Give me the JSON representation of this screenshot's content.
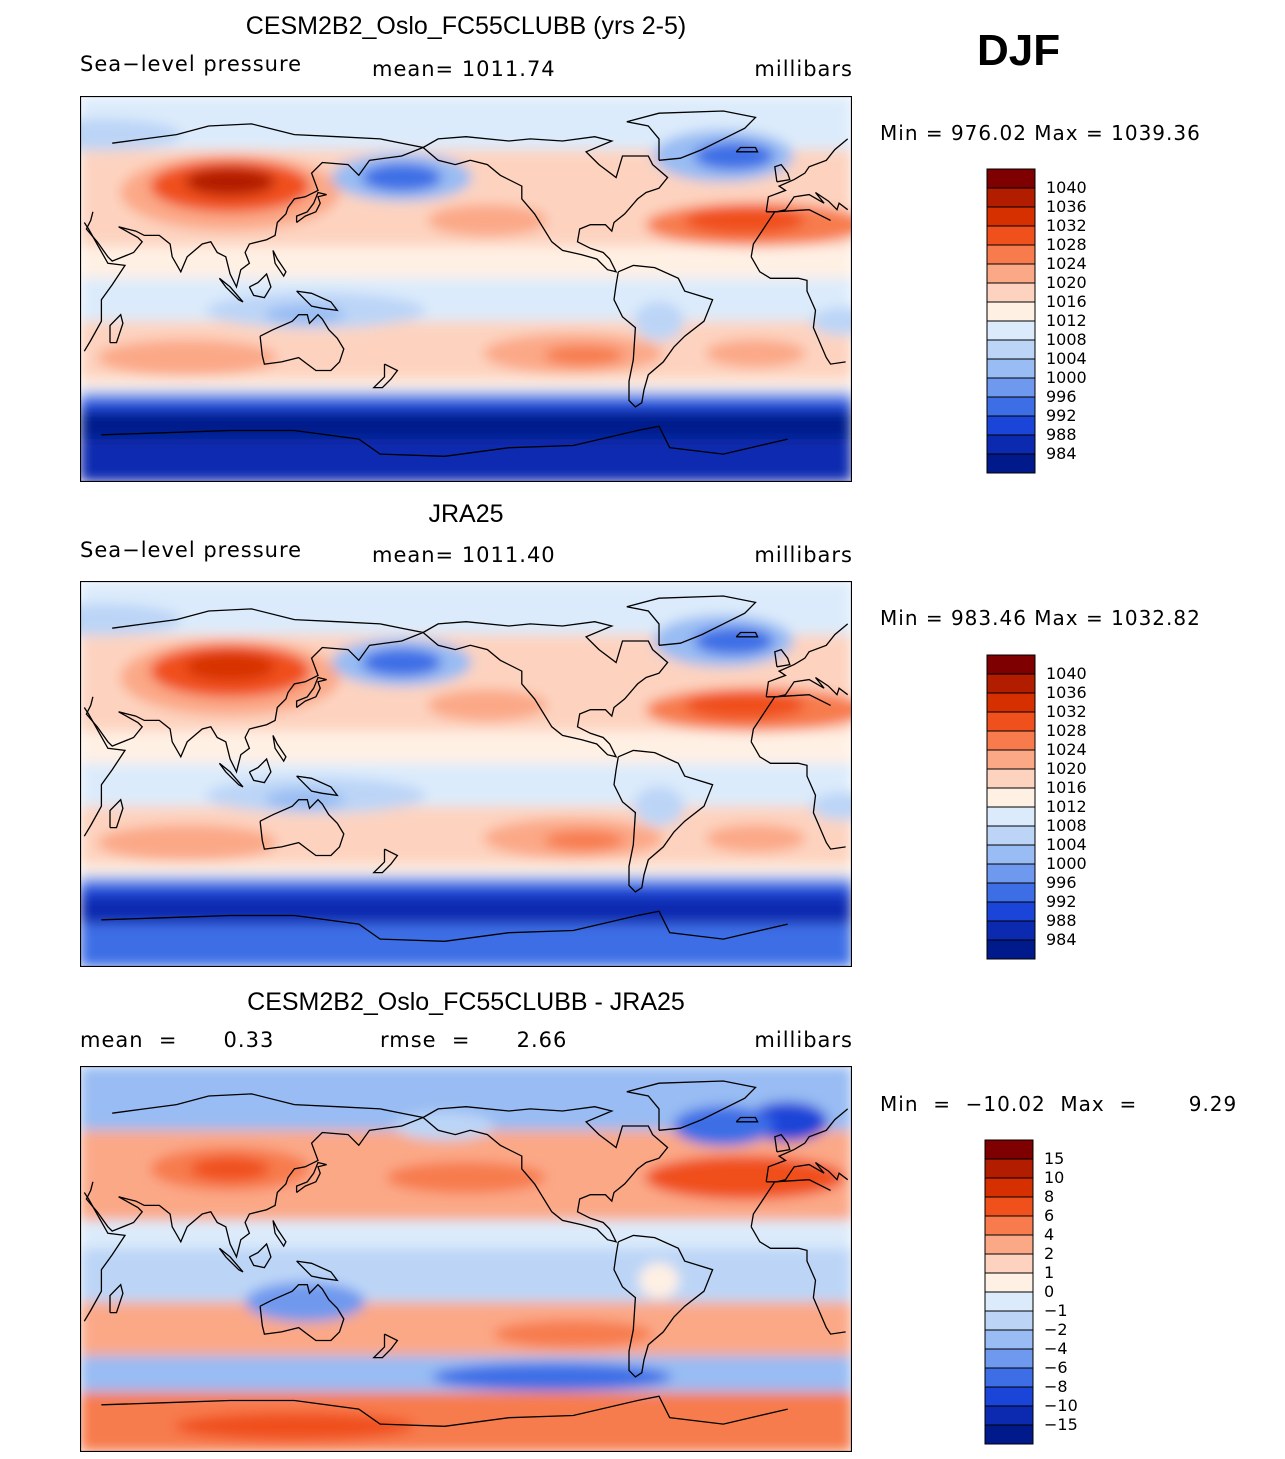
{
  "season": "DJF",
  "panels": [
    {
      "title": "CESM2B2_Oslo_FC55CLUBB (yrs 2-5)",
      "left_label": "Sea−level  pressure",
      "center_label": "mean=  1011.74",
      "units": "millibars",
      "minmax": "Min  =  976.02  Max  =  1039.36"
    },
    {
      "title": "JRA25",
      "left_label": "Sea−level  pressure",
      "center_label": "mean=  1011.40",
      "units": "millibars",
      "minmax": "Min  =  983.46  Max  =  1032.82"
    },
    {
      "title": "CESM2B2_Oslo_FC55CLUBB - JRA25",
      "left_label": "mean  =      0.33",
      "center_label": "rmse  =      2.66",
      "units": "millibars",
      "minmax": "Min  =  −10.02  Max  =       9.29"
    }
  ],
  "chart_data": [
    {
      "type": "heatmap",
      "title": "CESM2B2_Oslo_FC55CLUBB (yrs 2-5)",
      "variable": "Sea-level pressure",
      "units": "millibars",
      "mean": 1011.74,
      "min": 976.02,
      "max": 1039.36,
      "levels": [
        "1040",
        "1036",
        "1032",
        "1028",
        "1024",
        "1020",
        "1016",
        "1012",
        "1008",
        "1004",
        "1000",
        "996",
        "992",
        "988",
        "984"
      ],
      "colors": [
        "#7f0000",
        "#b21d00",
        "#d73000",
        "#f0501c",
        "#f77b4d",
        "#fba887",
        "#fdd3bf",
        "#fff0e4",
        "#dcebfb",
        "#bcd5f7",
        "#98bcf3",
        "#6f99ee",
        "#3d6ee6",
        "#1b44d8",
        "#0b2ab0",
        "#001a8c"
      ]
    },
    {
      "type": "heatmap",
      "title": "JRA25",
      "variable": "Sea-level pressure",
      "units": "millibars",
      "mean": 1011.4,
      "min": 983.46,
      "max": 1032.82,
      "levels": [
        "1040",
        "1036",
        "1032",
        "1028",
        "1024",
        "1020",
        "1016",
        "1012",
        "1008",
        "1004",
        "1000",
        "996",
        "992",
        "988",
        "984"
      ],
      "colors": [
        "#7f0000",
        "#b21d00",
        "#d73000",
        "#f0501c",
        "#f77b4d",
        "#fba887",
        "#fdd3bf",
        "#fff0e4",
        "#dcebfb",
        "#bcd5f7",
        "#98bcf3",
        "#6f99ee",
        "#3d6ee6",
        "#1b44d8",
        "#0b2ab0",
        "#001a8c"
      ]
    },
    {
      "type": "heatmap",
      "title": "CESM2B2_Oslo_FC55CLUBB - JRA25",
      "units": "millibars",
      "mean": 0.33,
      "rmse": 2.66,
      "min": -10.02,
      "max": 9.29,
      "levels": [
        "15",
        "10",
        "8",
        "6",
        "4",
        "2",
        "1",
        "0",
        "−1",
        "−2",
        "−4",
        "−6",
        "−8",
        "−10",
        "−15"
      ],
      "colors": [
        "#7f0000",
        "#b21d00",
        "#d73000",
        "#f0501c",
        "#f77b4d",
        "#fba887",
        "#fdd3bf",
        "#fff0e4",
        "#dcebfb",
        "#bcd5f7",
        "#98bcf3",
        "#6f99ee",
        "#3d6ee6",
        "#1b44d8",
        "#0b2ab0",
        "#001a8c"
      ]
    }
  ]
}
